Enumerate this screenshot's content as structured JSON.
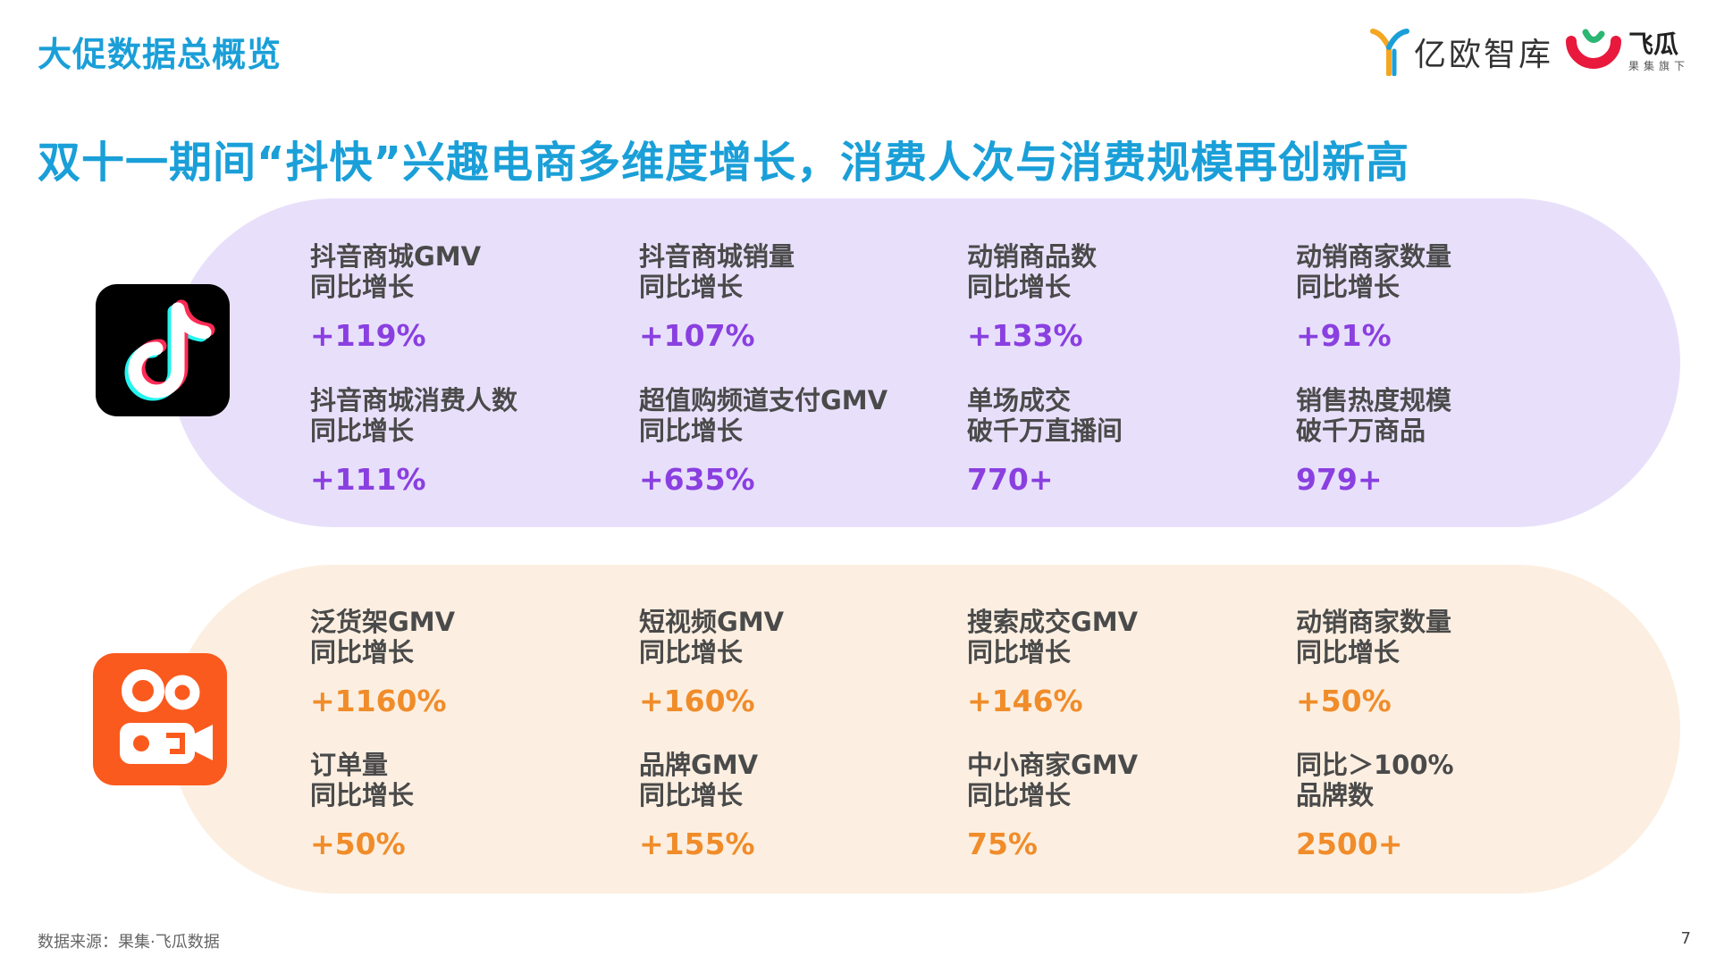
{
  "header": {
    "section_title": "大促数据总概览",
    "headline": "双十一期间“抖快”兴趣电商多维度增长，消费人次与消费规模再创新高"
  },
  "logos": {
    "yiou_name": "亿欧智库",
    "feigua_name": "飞瓜",
    "feigua_sub": "果集旗下"
  },
  "douyin": {
    "icon": "douyin-logo-icon",
    "metrics": [
      {
        "label1": "抖音商城GMV",
        "label2": "同比增长",
        "value": "+119%"
      },
      {
        "label1": "抖音商城销量",
        "label2": "同比增长",
        "value": "+107%"
      },
      {
        "label1": "动销商品数",
        "label2": "同比增长",
        "value": "+133%"
      },
      {
        "label1": "动销商家数量",
        "label2": "同比增长",
        "value": "+91%"
      },
      {
        "label1": "抖音商城消费人数",
        "label2": "同比增长",
        "value": "+111%"
      },
      {
        "label1": "超值购频道支付GMV",
        "label2": "同比增长",
        "value": "+635%"
      },
      {
        "label1": "单场成交",
        "label2": "破千万直播间",
        "value": "770+"
      },
      {
        "label1": "销售热度规模",
        "label2": "破千万商品",
        "value": "979+"
      }
    ]
  },
  "kuaishou": {
    "icon": "kuaishou-logo-icon",
    "metrics": [
      {
        "label1": "泛货架GMV",
        "label2": "同比增长",
        "value": "+1160%"
      },
      {
        "label1": "短视频GMV",
        "label2": "同比增长",
        "value": "+160%"
      },
      {
        "label1": "搜索成交GMV",
        "label2": "同比增长",
        "value": "+146%"
      },
      {
        "label1": "动销商家数量",
        "label2": "同比增长",
        "value": "+50%"
      },
      {
        "label1": "订单量",
        "label2": "同比增长",
        "value": "+50%"
      },
      {
        "label1": "品牌GMV",
        "label2": "同比增长",
        "value": "+155%"
      },
      {
        "label1": "中小商家GMV",
        "label2": "同比增长",
        "value": "75%"
      },
      {
        "label1": "同比＞100%",
        "label2": "品牌数",
        "value": "2500+"
      }
    ]
  },
  "colors": {
    "title": "#1a9fd8",
    "douyin_value": "#8a3fe0",
    "kuaishou_value": "#f08c2a",
    "douyin_panel": "#e8e0fb",
    "kuaishou_panel": "#fcefe1"
  },
  "footer": {
    "source": "数据来源：果集·飞瓜数据",
    "page": "7"
  }
}
